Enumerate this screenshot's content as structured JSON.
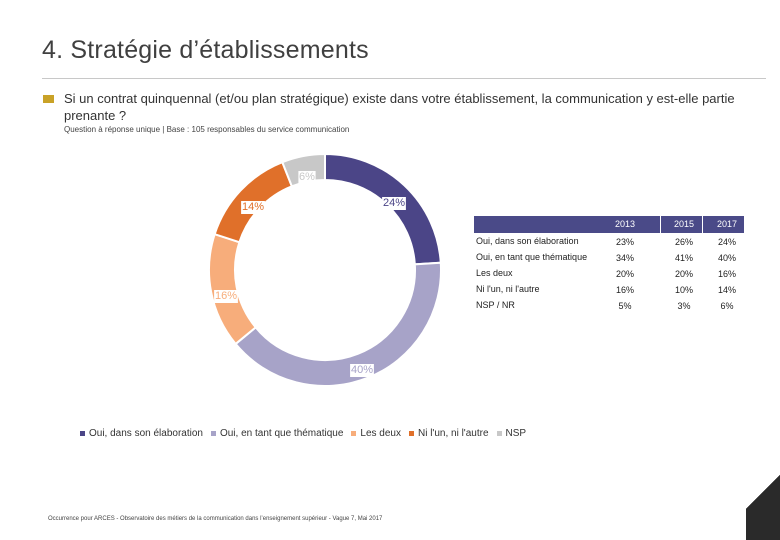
{
  "title": "4. Stratégie d’établissements",
  "question": "Si un contrat quinquennal (et/ou plan stratégique) existe dans votre établissement, la communication y est-elle partie prenante ?",
  "base": "Question à réponse unique | Base : 105 responsables du service communication",
  "footer": "Occurrence pour ARCES - Observatoire des métiers de la communication dans l’enseignement supérieur - Vague 7, Mai 2017",
  "colors": {
    "oui_elaboration": "#4b4587",
    "oui_thematique": "#a7a3c8",
    "les_deux": "#f7ad7b",
    "ni_lun": "#e0702a",
    "nsp": "#c8c8c8",
    "table_header": "#4a4a88"
  },
  "chart_data": [
    {
      "type": "pie",
      "subtype": "donut",
      "categories": [
        "Oui, dans son élaboration",
        "Oui, en tant que thématique",
        "Les deux",
        "Ni l'un, ni l'autre",
        "NSP"
      ],
      "values": [
        24,
        40,
        16,
        14,
        6
      ],
      "labels": [
        "24%",
        "40%",
        "16%",
        "14%",
        "6%"
      ],
      "legend": [
        "Oui, dans son élaboration",
        "Oui, en tant que thématique",
        "Les deux",
        "Ni l'un, ni l'autre",
        "NSP"
      ],
      "legend_placement": "bottom"
    },
    {
      "type": "table",
      "columns": [
        "2013",
        "2015",
        "2017"
      ],
      "rows": [
        {
          "label": "Oui, dans son élaboration",
          "values": [
            "23%",
            "26%",
            "24%"
          ]
        },
        {
          "label": "Oui, en tant que thématique",
          "values": [
            "34%",
            "41%",
            "40%"
          ]
        },
        {
          "label": "Les deux",
          "values": [
            "20%",
            "20%",
            "16%"
          ]
        },
        {
          "label": "Ni l'un, ni l'autre",
          "values": [
            "16%",
            "10%",
            "14%"
          ]
        },
        {
          "label": "NSP / NR",
          "values": [
            "5%",
            "3%",
            "6%"
          ]
        }
      ]
    }
  ]
}
